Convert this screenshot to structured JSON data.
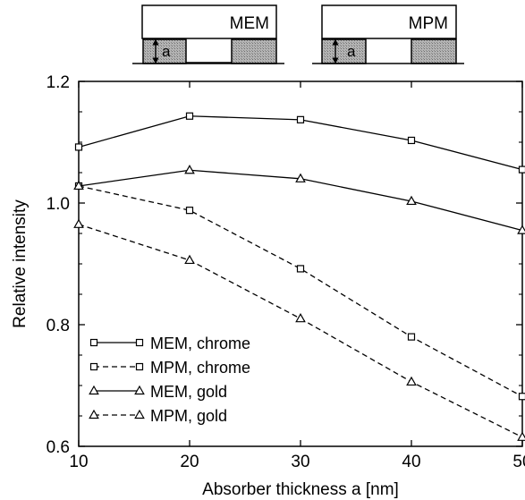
{
  "chart_data": {
    "type": "line",
    "xlabel": "Absorber thickness a [nm]",
    "ylabel": "Relative intensity",
    "xlim": [
      10,
      50
    ],
    "ylim": [
      0.6,
      1.2
    ],
    "x_ticks": [
      "10",
      "20",
      "30",
      "40",
      "50"
    ],
    "y_ticks": [
      "0.6",
      "0.8",
      "1.0",
      "1.2"
    ],
    "grid": false,
    "legend_position": "bottom-left",
    "x": [
      10,
      20,
      30,
      40,
      50
    ],
    "series": [
      {
        "name": "MEM, chrome",
        "marker": "square",
        "line": "solid",
        "values": [
          1.092,
          1.143,
          1.137,
          1.103,
          1.055
        ]
      },
      {
        "name": "MPM, chrome",
        "marker": "square",
        "line": "dashed",
        "values": [
          1.028,
          0.988,
          0.892,
          0.78,
          0.682
        ]
      },
      {
        "name": "MEM, gold",
        "marker": "triangle",
        "line": "solid",
        "values": [
          1.028,
          1.054,
          1.04,
          1.003,
          0.955
        ]
      },
      {
        "name": "MPM, gold",
        "marker": "triangle",
        "line": "dashed",
        "values": [
          0.965,
          0.906,
          0.81,
          0.706,
          0.615
        ]
      }
    ],
    "insets": [
      {
        "label": "MEM",
        "dimension_label": "a"
      },
      {
        "label": "MPM",
        "dimension_label": "a"
      }
    ],
    "colors": {
      "line": "#000000",
      "absorber_fill": "#a0a0a0"
    }
  }
}
